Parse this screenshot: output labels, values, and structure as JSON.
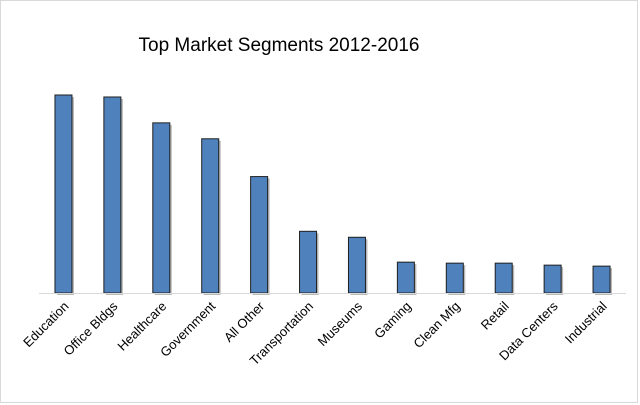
{
  "chart_data": {
    "type": "bar",
    "title": "Top Market Segments 2012-2016",
    "xlabel": "",
    "ylabel": "",
    "categories": [
      "Education",
      "Office Bldgs",
      "Healthcare",
      "Government",
      "All Other",
      "Transportation",
      "Museums",
      "Gaming",
      "Clean Mfg",
      "Retail",
      "Data Centers",
      "Industrial"
    ],
    "values": [
      199,
      197,
      171,
      155,
      117,
      62,
      56,
      31,
      30,
      30,
      28,
      27
    ],
    "ylim": [
      0,
      200
    ],
    "grid": false,
    "legend": "none",
    "bar_color": "#4f81bd",
    "bar_edge_color": "#1f1f1f",
    "shadow_color": "#7f7f7f",
    "axis_color": "#d9d9d9"
  }
}
